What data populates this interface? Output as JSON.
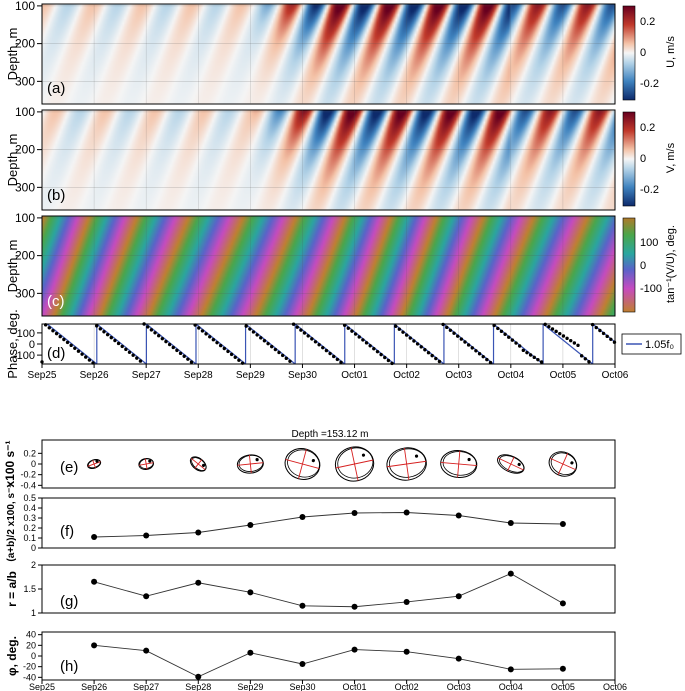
{
  "chart_data": [
    {
      "panel": "(a)",
      "type": "heatmap",
      "ylabel": "Depth, m",
      "yticks": [
        100,
        200,
        300
      ],
      "ylim": [
        360,
        95
      ],
      "colorbar": {
        "label": "U, m/s",
        "ticks": [
          "0.2",
          "0",
          "-0.2"
        ],
        "range": [
          -0.3,
          0.3
        ]
      },
      "x_range": [
        "Sep25",
        "Oct06"
      ],
      "near_inertial_cycles_per_day": 1.05
    },
    {
      "panel": "(b)",
      "type": "heatmap",
      "ylabel": "Depth, m",
      "yticks": [
        100,
        200,
        300
      ],
      "ylim": [
        360,
        95
      ],
      "colorbar": {
        "label": "V, m/s",
        "ticks": [
          "0.2",
          "0",
          "-0.2"
        ],
        "range": [
          -0.3,
          0.3
        ]
      }
    },
    {
      "panel": "(c)",
      "type": "heatmap",
      "ylabel": "Depth, m",
      "yticks": [
        100,
        200,
        300
      ],
      "ylim": [
        360,
        95
      ],
      "colorbar": {
        "label": "tan⁻¹(V/U), deg.",
        "ticks": [
          "100",
          "0",
          "-100"
        ],
        "range": [
          -180,
          180
        ]
      }
    },
    {
      "panel": "(d)",
      "type": "line",
      "ylabel": "Phase, deg.",
      "yticks": [
        100,
        0,
        -100
      ],
      "ylim": [
        -180,
        180
      ],
      "legend": {
        "entries": [
          "1.05f₀"
        ],
        "placement": "right"
      },
      "reference_line": {
        "name": "1.05f₀",
        "color": "#3a54b4",
        "start_day": 0.1,
        "period_days": 0.952
      },
      "observed_phase_points": {
        "days": [
          0,
          11
        ],
        "description_free": true
      },
      "xticks": [
        "Sep25",
        "Sep26",
        "Sep27",
        "Sep28",
        "Sep29",
        "Sep30",
        "Oct01",
        "Oct02",
        "Oct03",
        "Oct04",
        "Oct05",
        "Oct06"
      ]
    },
    {
      "panel": "(e)",
      "type": "scatter",
      "title": "Depth =153.12 m",
      "ylabel": "x100 s⁻¹",
      "yticks": [
        "0.2",
        "0",
        "-0.2",
        "-0.4"
      ],
      "ylim": [
        -0.45,
        0.45
      ],
      "ellipse_days": [
        1,
        2,
        3,
        4,
        5,
        6,
        7,
        8,
        9,
        10
      ],
      "ellipse_semi_major": [
        0.12,
        0.13,
        0.16,
        0.23,
        0.31,
        0.34,
        0.35,
        0.32,
        0.25,
        0.25
      ],
      "ellipse_ratio": [
        1.65,
        1.35,
        1.63,
        1.43,
        1.15,
        1.13,
        1.23,
        1.35,
        1.82,
        1.2
      ],
      "ellipse_angle_deg": [
        20,
        10,
        -39,
        6,
        -15,
        12,
        8,
        -5,
        -25,
        -24
      ]
    },
    {
      "panel": "(f)",
      "type": "line",
      "ylabel": "(a+b)/2 x100, s⁻¹",
      "yticks": [
        "0.5",
        "0.4",
        "0.3",
        "0.2",
        "0.1",
        "0"
      ],
      "ylim": [
        0,
        0.5
      ],
      "x": [
        "Sep26",
        "Sep27",
        "Sep28",
        "Sep29",
        "Sep30",
        "Oct01",
        "Oct02",
        "Oct03",
        "Oct04",
        "Oct05"
      ],
      "values": [
        0.11,
        0.125,
        0.155,
        0.23,
        0.31,
        0.35,
        0.355,
        0.325,
        0.25,
        0.24
      ]
    },
    {
      "panel": "(g)",
      "type": "line",
      "ylabel": "r = a/b",
      "yticks": [
        "2",
        "1.5",
        "1"
      ],
      "ylim": [
        1,
        2
      ],
      "x": [
        "Sep26",
        "Sep27",
        "Sep28",
        "Sep29",
        "Sep30",
        "Oct01",
        "Oct02",
        "Oct03",
        "Oct04",
        "Oct05"
      ],
      "values": [
        1.65,
        1.35,
        1.63,
        1.43,
        1.15,
        1.13,
        1.23,
        1.35,
        1.82,
        1.2
      ]
    },
    {
      "panel": "(h)",
      "type": "line",
      "ylabel": "φ, deg.",
      "yticks": [
        "40",
        "20",
        "0",
        "-20",
        "-40"
      ],
      "ylim": [
        -45,
        45
      ],
      "x": [
        "Sep26",
        "Sep27",
        "Sep28",
        "Sep29",
        "Sep30",
        "Oct01",
        "Oct02",
        "Oct03",
        "Oct04",
        "Oct05"
      ],
      "values": [
        20,
        10,
        -39,
        6,
        -15,
        12,
        8,
        -5,
        -25,
        -24
      ],
      "xticks": [
        "Sep25",
        "Sep26",
        "Sep27",
        "Sep28",
        "Sep29",
        "Sep30",
        "Oct01",
        "Oct02",
        "Oct03",
        "Oct04",
        "Oct05",
        "Oct06"
      ]
    }
  ]
}
